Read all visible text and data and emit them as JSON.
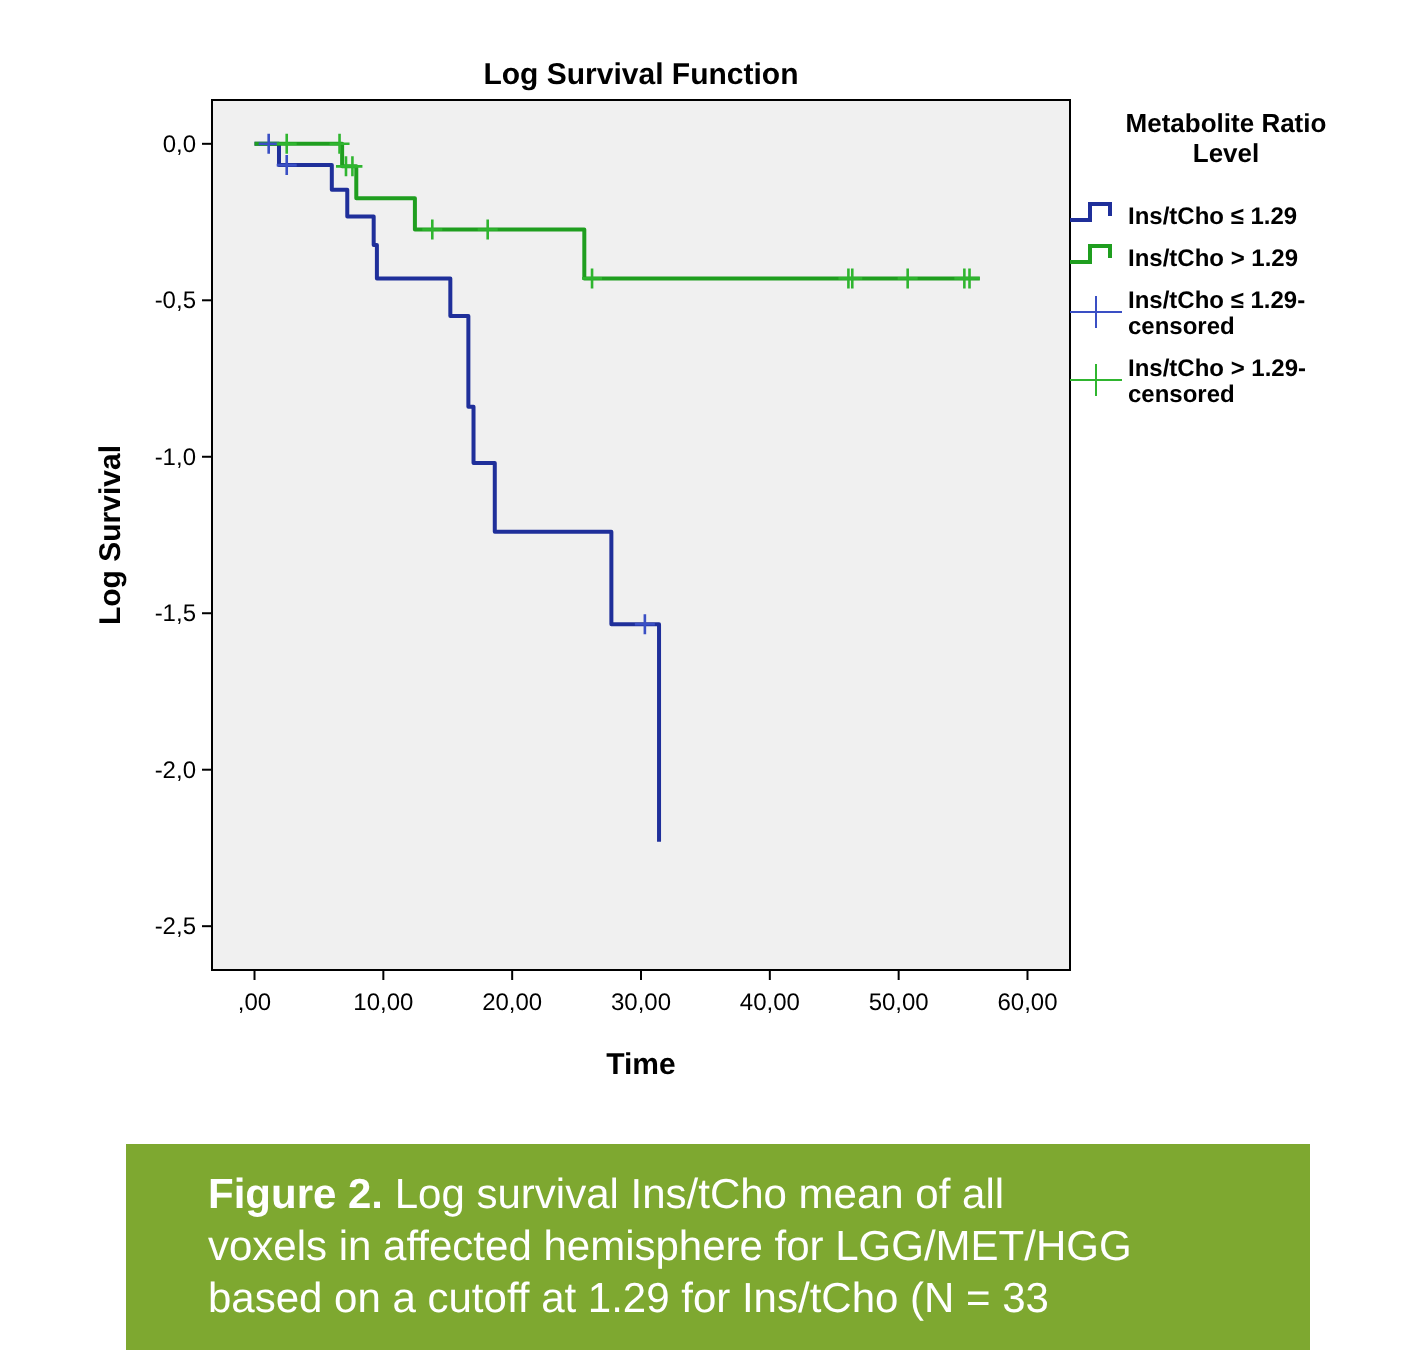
{
  "chart_data": {
    "type": "step",
    "title": "Log Survival Function",
    "xlabel": "Time",
    "ylabel": "Log Survival",
    "legend_title": "Metabolite Ratio Level",
    "legend": "right",
    "grid": false,
    "xlim": [
      -3.3,
      63.3
    ],
    "ylim": [
      -2.64,
      0.14
    ],
    "xticks": [
      {
        "value": 0,
        "label": ",00"
      },
      {
        "value": 10,
        "label": "10,00"
      },
      {
        "value": 20,
        "label": "20,00"
      },
      {
        "value": 30,
        "label": "30,00"
      },
      {
        "value": 40,
        "label": "40,00"
      },
      {
        "value": 50,
        "label": "50,00"
      },
      {
        "value": 60,
        "label": "60,00"
      }
    ],
    "yticks": [
      {
        "value": 0,
        "label": "0,0"
      },
      {
        "value": -0.5,
        "label": "-0,5"
      },
      {
        "value": -1,
        "label": "-1,0"
      },
      {
        "value": -1.5,
        "label": "-1,5"
      },
      {
        "value": -2,
        "label": "-2,0"
      },
      {
        "value": -2.5,
        "label": "-2,5"
      }
    ],
    "series": [
      {
        "name": "Ins/tCho ≤ 1.29",
        "color": "#1f2f9a",
        "x": [
          0,
          1.9,
          6.0,
          7.2,
          9.25,
          9.5,
          15.2,
          16.6,
          17.0,
          18.65,
          27.7,
          31.4
        ],
        "values": [
          0,
          -0.068,
          -0.147,
          -0.232,
          -0.323,
          -0.43,
          -0.55,
          -0.84,
          -1.02,
          -1.24,
          -1.535,
          -2.23
        ]
      },
      {
        "name": "Ins/tCho > 1.29",
        "color": "#1f9e1f",
        "x": [
          0,
          6.8,
          7.9,
          12.45,
          25.6,
          56.3
        ],
        "values": [
          0,
          -0.072,
          -0.174,
          -0.274,
          -0.43,
          -0.43
        ]
      },
      {
        "name": "Ins/tCho ≤ 1.29-censored",
        "type": "scatter",
        "marker": "cross",
        "color": "#3a4fc4",
        "x": [
          1.1,
          2.5,
          30.3
        ],
        "values": [
          0,
          -0.068,
          -1.535
        ]
      },
      {
        "name": "Ins/tCho > 1.29-censored",
        "type": "scatter",
        "marker": "cross",
        "color": "#2fb52f",
        "x": [
          2.5,
          6.6,
          7.1,
          7.6,
          13.8,
          18.1,
          26.2,
          46.1,
          46.4,
          50.7,
          55.1,
          55.5
        ],
        "values": [
          0,
          0,
          -0.072,
          -0.072,
          -0.274,
          -0.274,
          -0.43,
          -0.43,
          -0.43,
          -0.43,
          -0.43,
          -0.43
        ]
      }
    ],
    "annotations": [
      "Figure 2. Log survival Ins/tCho mean of all voxels in affected hemisphere for LGG/MET/HGG based on a cutoff at 1.29 for Ins/tCho (N = 33"
    ]
  }
}
